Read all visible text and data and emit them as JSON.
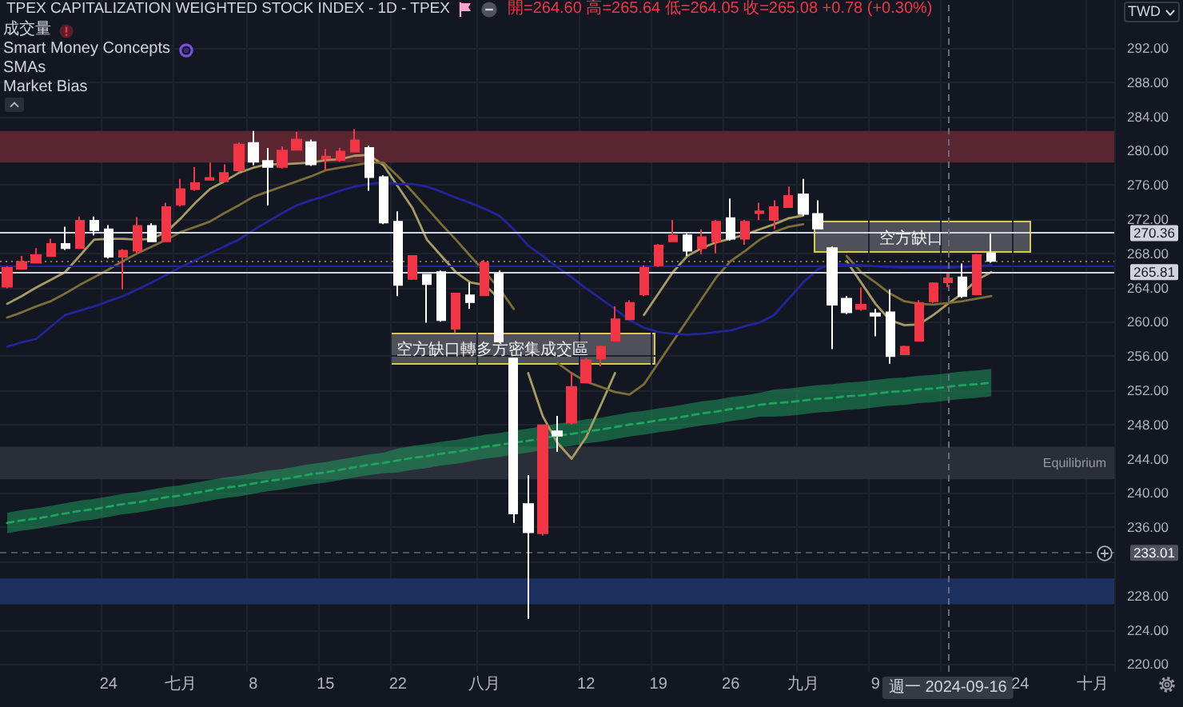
{
  "chart_data": {
    "type": "candlestick",
    "title": "TPEX CAPITALIZATION WEIGHTED STOCK INDEX - 1D - TPEX",
    "subtitle": "開=264.60 高=265.64 低=264.05 收=265.08 +0.78 (+0.30%)",
    "ylabel": "TWD",
    "categories": [
      null,
      null,
      null,
      null,
      null,
      null,
      null,
      "24",
      null,
      null,
      null,
      null,
      "七月",
      null,
      null,
      null,
      null,
      "8",
      null,
      null,
      null,
      null,
      "15",
      null,
      null,
      null,
      null,
      "22",
      null,
      null,
      null,
      null,
      null,
      "八月",
      null,
      null,
      null,
      null,
      null,
      null,
      "12",
      null,
      null,
      null,
      null,
      "19",
      null,
      null,
      null,
      null,
      "26",
      null,
      null,
      null,
      null,
      "九月",
      null,
      null,
      null,
      null,
      "9",
      null,
      null,
      null,
      null,
      "週一 2024-09-16",
      null,
      null,
      null,
      null,
      "24",
      null,
      null,
      null,
      null,
      "十月",
      null
    ],
    "ohlc": [
      [
        264.1,
        266.5,
        263.9,
        266.3
      ],
      [
        266.2,
        267.7,
        266.1,
        267.0
      ],
      [
        266.9,
        268.6,
        266.8,
        267.8
      ],
      [
        267.7,
        269.7,
        267.6,
        269.1
      ],
      [
        269.1,
        271.1,
        268.4,
        268.6
      ],
      [
        268.6,
        272.3,
        268.5,
        271.8
      ],
      [
        271.8,
        272.3,
        270.1,
        270.7
      ],
      [
        270.8,
        271.3,
        267.4,
        267.6
      ],
      [
        267.6,
        268.5,
        263.8,
        268.3
      ],
      [
        268.3,
        272.2,
        268.0,
        271.2
      ],
      [
        271.2,
        271.5,
        269.3,
        269.4
      ],
      [
        269.4,
        273.9,
        269.3,
        273.4
      ],
      [
        273.7,
        276.7,
        273.5,
        275.5
      ],
      [
        275.5,
        278.1,
        275.3,
        276.2
      ],
      [
        276.6,
        278.6,
        276.5,
        276.8
      ],
      [
        276.4,
        278.4,
        276.3,
        277.4
      ],
      [
        277.7,
        281.0,
        277.5,
        280.7
      ],
      [
        280.9,
        282.3,
        278.3,
        278.7
      ],
      [
        278.8,
        280.3,
        273.6,
        278.1
      ],
      [
        278.1,
        280.5,
        277.9,
        280.0
      ],
      [
        280.1,
        282.2,
        280.0,
        281.3
      ],
      [
        281.0,
        281.3,
        278.2,
        278.4
      ],
      [
        279.1,
        280.2,
        277.7,
        279.3
      ],
      [
        278.9,
        280.3,
        278.7,
        279.9
      ],
      [
        279.9,
        282.5,
        279.8,
        281.2
      ],
      [
        280.3,
        280.6,
        275.3,
        276.9
      ],
      [
        276.9,
        277.1,
        271.4,
        271.6
      ],
      [
        271.7,
        272.9,
        263.0,
        264.3
      ],
      [
        265.0,
        267.7,
        264.9,
        267.7
      ],
      [
        265.5,
        265.6,
        259.9,
        264.4
      ],
      [
        265.8,
        266.0,
        260.0,
        260.2
      ],
      [
        259.2,
        263.4,
        258.7,
        263.3
      ],
      [
        263.1,
        264.6,
        261.5,
        262.3
      ],
      [
        263.1,
        267.2,
        263.0,
        266.9
      ],
      [
        265.6,
        266.0,
        257.7,
        257.7
      ],
      [
        255.7,
        255.7,
        236.5,
        237.6
      ],
      [
        238.7,
        242.1,
        225.3,
        235.4
      ],
      [
        235.3,
        248.0,
        235.0,
        247.9
      ],
      [
        247.2,
        249.0,
        244.8,
        246.7
      ],
      [
        248.2,
        254.1,
        248.0,
        252.4
      ],
      [
        252.9,
        255.7,
        252.8,
        255.5
      ],
      [
        255.7,
        257.2,
        254.8,
        257.1
      ],
      [
        257.8,
        261.8,
        257.7,
        260.3
      ],
      [
        260.3,
        262.5,
        260.2,
        262.2
      ],
      [
        263.2,
        266.6,
        263.0,
        266.3
      ],
      [
        266.6,
        269.1,
        266.4,
        268.9
      ],
      [
        269.4,
        271.9,
        269.3,
        270.1
      ],
      [
        270.1,
        270.3,
        267.7,
        268.3
      ],
      [
        268.6,
        270.8,
        267.9,
        269.9
      ],
      [
        269.4,
        271.9,
        268.0,
        271.7
      ],
      [
        272.1,
        274.4,
        269.5,
        269.7
      ],
      [
        269.7,
        271.9,
        269.0,
        271.7
      ],
      [
        272.7,
        273.9,
        271.9,
        272.9
      ],
      [
        271.9,
        274.2,
        270.8,
        273.4
      ],
      [
        273.4,
        275.8,
        273.3,
        274.7
      ],
      [
        274.9,
        276.7,
        272.4,
        272.6
      ],
      [
        272.6,
        274.2,
        270.8,
        270.9
      ],
      [
        268.6,
        268.8,
        256.8,
        262.0
      ],
      [
        262.7,
        263.0,
        260.9,
        261.1
      ],
      [
        261.5,
        264.0,
        261.3,
        262.0
      ],
      [
        261.0,
        261.5,
        258.3,
        260.7
      ],
      [
        261.1,
        263.8,
        255.1,
        256.0
      ],
      [
        256.2,
        257.2,
        256.1,
        257.1
      ],
      [
        257.8,
        262.5,
        257.7,
        262.2
      ],
      [
        262.4,
        264.6,
        262.2,
        264.5
      ],
      [
        264.6,
        265.64,
        264.05,
        265.08
      ],
      [
        265.2,
        266.8,
        262.8,
        263.0
      ],
      [
        263.2,
        267.9,
        263.1,
        267.8
      ],
      [
        268.0,
        270.3,
        266.9,
        267.1
      ],
      null,
      null,
      null,
      null,
      null,
      null,
      null,
      null
    ],
    "colors": [
      "#f23645",
      "#f23645",
      "#f23645",
      "#f23645",
      "#ffffff",
      "#f23645",
      "#ffffff",
      "#ffffff",
      "#f23645",
      "#f23645",
      "#ffffff",
      "#f23645",
      "#f23645",
      "#f23645",
      "#f23645",
      "#f23645",
      "#f23645",
      "#ffffff",
      "#ffffff",
      "#f23645",
      "#f23645",
      "#ffffff",
      "#f23645",
      "#f23645",
      "#f23645",
      "#ffffff",
      "#ffffff",
      "#ffffff",
      "#f23645",
      "#ffffff",
      "#ffffff",
      "#f23645",
      "#ffffff",
      "#f23645",
      "#ffffff",
      "#ffffff",
      "#ffffff",
      "#f23645",
      "#ffffff",
      "#f23645",
      "#f23645",
      "#f23645",
      "#f23645",
      "#f23645",
      "#f23645",
      "#f23645",
      "#f23645",
      "#ffffff",
      "#f23645",
      "#f23645",
      "#ffffff",
      "#f23645",
      "#f23645",
      "#f23645",
      "#f23645",
      "#ffffff",
      "#ffffff",
      "#ffffff",
      "#ffffff",
      "#f23645",
      "#ffffff",
      "#ffffff",
      "#f23645",
      "#f23645",
      "#f23645",
      "#f23645",
      "#ffffff",
      "#f23645",
      "#ffffff",
      null,
      null,
      null,
      null,
      null,
      null,
      null,
      null
    ],
    "series": [
      {
        "type": "line",
        "color": "#a89c62",
        "values": [
          262.1,
          263.0,
          264.0,
          264.9,
          265.8,
          267.7,
          269.6,
          269.7,
          269.7,
          269.6,
          269.7,
          270.5,
          272.1,
          273.9,
          275.5,
          276.4,
          277.4,
          278.0,
          278.4,
          278.4,
          278.5,
          278.6,
          278.9,
          279.0,
          279.4,
          279.5,
          278.3,
          275.8,
          273.3,
          269.6,
          267.7,
          265.8,
          264.6,
          264.3,
          262.7,
          null,
          254.0,
          249.0,
          245.9,
          244.0,
          246.5,
          250.2,
          254.0,
          null,
          260.8,
          263.3,
          265.8,
          267.7,
          268.6,
          269.3,
          269.7,
          270.2,
          270.8,
          271.4,
          272.1,
          272.4,
          null,
          null,
          267.1,
          264.6,
          262.1,
          260.2,
          259.6,
          259.7,
          260.8,
          262.1,
          263.3,
          264.9,
          265.8,
          null,
          null,
          null,
          null,
          null,
          null,
          null,
          null
        ]
      },
      {
        "type": "line",
        "color": "#7d6d36",
        "values": [
          260.5,
          261.1,
          261.8,
          262.4,
          263.3,
          264.3,
          265.2,
          266.1,
          267.1,
          268.0,
          268.8,
          269.6,
          270.5,
          271.1,
          271.7,
          272.7,
          273.6,
          274.6,
          275.2,
          275.8,
          276.4,
          277.0,
          277.7,
          278.0,
          278.3,
          278.6,
          278.6,
          277.0,
          275.2,
          273.3,
          271.4,
          269.6,
          267.7,
          265.8,
          263.9,
          261.5,
          null,
          null,
          255.2,
          254.0,
          253.0,
          252.4,
          251.8,
          251.5,
          252.7,
          255.2,
          257.7,
          260.2,
          262.7,
          265.2,
          267.1,
          268.3,
          269.6,
          270.5,
          271.1,
          271.4,
          null,
          null,
          267.7,
          265.8,
          264.6,
          263.3,
          262.4,
          262.1,
          262.0,
          262.2,
          262.4,
          262.7,
          263.0,
          null,
          null,
          null,
          null,
          null,
          null,
          null,
          null
        ]
      },
      {
        "type": "line",
        "color": "#22249a",
        "values": [
          257.1,
          257.6,
          258.0,
          259.4,
          260.8,
          261.3,
          261.8,
          262.4,
          263.0,
          263.8,
          264.6,
          265.5,
          266.4,
          267.2,
          268.0,
          268.8,
          269.6,
          270.7,
          271.7,
          272.7,
          273.6,
          274.2,
          274.7,
          275.3,
          275.8,
          276.1,
          276.3,
          276.1,
          276.1,
          275.8,
          275.2,
          274.5,
          273.9,
          273.2,
          272.4,
          270.8,
          268.9,
          267.7,
          266.4,
          265.2,
          263.9,
          262.7,
          261.5,
          260.2,
          259.3,
          258.8,
          258.6,
          258.5,
          258.6,
          258.8,
          259.0,
          259.5,
          259.9,
          260.8,
          262.7,
          264.6,
          266.1,
          266.8,
          266.7,
          266.6,
          266.5,
          266.4,
          266.3,
          266.3,
          266.3,
          266.3,
          266.4,
          266.5,
          266.6,
          null,
          null,
          null,
          null,
          null,
          null,
          null,
          null
        ]
      },
      {
        "type": "line",
        "color": "#1ea35f",
        "line_style": "dashed",
        "values": [
          236.5,
          236.8,
          237.0,
          237.3,
          237.6,
          237.9,
          238.1,
          238.4,
          238.7,
          238.9,
          239.2,
          239.5,
          239.7,
          240.0,
          240.3,
          240.6,
          240.8,
          241.1,
          241.4,
          241.6,
          241.9,
          242.2,
          242.4,
          242.7,
          243.0,
          243.3,
          243.5,
          243.8,
          244.1,
          244.3,
          244.6,
          244.8,
          245.1,
          245.4,
          245.6,
          245.9,
          246.1,
          246.4,
          246.7,
          246.9,
          247.2,
          247.4,
          247.7,
          248.0,
          248.2,
          248.5,
          248.7,
          249.0,
          249.3,
          249.5,
          249.8,
          250.0,
          250.3,
          250.5,
          250.6,
          250.8,
          251.0,
          251.1,
          251.3,
          251.4,
          251.6,
          251.8,
          251.9,
          252.1,
          252.2,
          252.4,
          252.6,
          252.7,
          252.9,
          null,
          null,
          null,
          null,
          null,
          null,
          null,
          null
        ],
        "lower": [
          235.3,
          235.6,
          235.8,
          236.1,
          236.4,
          236.7,
          236.9,
          237.2,
          237.5,
          237.7,
          238.0,
          238.3,
          238.5,
          238.8,
          239.1,
          239.4,
          239.6,
          239.9,
          240.2,
          240.4,
          240.7,
          241.0,
          241.2,
          241.5,
          241.8,
          242.1,
          242.3,
          242.4,
          242.7,
          242.9,
          243.2,
          243.4,
          243.7,
          244.0,
          244.2,
          244.5,
          244.7,
          245.0,
          245.3,
          245.5,
          245.8,
          246.0,
          246.3,
          246.6,
          246.8,
          247.1,
          247.3,
          247.6,
          247.9,
          248.1,
          248.4,
          248.6,
          248.9,
          248.9,
          249.0,
          249.2,
          249.4,
          249.5,
          249.7,
          249.8,
          250.0,
          250.2,
          250.3,
          250.5,
          250.6,
          250.8,
          251.0,
          251.1,
          251.3,
          null,
          null,
          null,
          null,
          null,
          null,
          null,
          null
        ],
        "upper": [
          237.7,
          238.0,
          238.2,
          238.5,
          238.8,
          239.1,
          239.3,
          239.6,
          239.9,
          240.1,
          240.4,
          240.7,
          240.9,
          241.2,
          241.5,
          241.8,
          242.0,
          242.3,
          242.6,
          242.8,
          243.1,
          243.4,
          243.6,
          243.9,
          244.2,
          244.5,
          244.7,
          245.2,
          245.5,
          245.7,
          246.0,
          246.2,
          246.5,
          246.8,
          247.0,
          247.3,
          247.5,
          247.8,
          248.1,
          248.3,
          248.6,
          248.8,
          249.1,
          249.4,
          249.6,
          249.9,
          250.1,
          250.4,
          250.7,
          250.9,
          251.2,
          251.4,
          251.7,
          252.1,
          252.2,
          252.4,
          252.6,
          252.7,
          252.9,
          253.0,
          253.2,
          253.4,
          253.5,
          253.7,
          253.8,
          254.0,
          254.2,
          254.3,
          254.5,
          null,
          null,
          null,
          null,
          null,
          null,
          null,
          null
        ]
      }
    ],
    "ylim": [
      219.1,
      297.6
    ],
    "yticks": [
      {
        "value": 220,
        "label": "220.00"
      },
      {
        "value": 224,
        "label": "224.00"
      },
      {
        "value": 228,
        "label": "228.00"
      },
      {
        "value": 232,
        "label": null
      },
      {
        "value": 236,
        "label": "236.00"
      },
      {
        "value": 240,
        "label": "240.00"
      },
      {
        "value": 244,
        "label": "244.00"
      },
      {
        "value": 248,
        "label": "248.00"
      },
      {
        "value": 252,
        "label": "252.00"
      },
      {
        "value": 256,
        "label": "256.00"
      },
      {
        "value": 260,
        "label": "260.00"
      },
      {
        "value": 264,
        "label": "264.00"
      },
      {
        "value": 268,
        "label": "268.00"
      },
      {
        "value": 272,
        "label": "272.00"
      },
      {
        "value": 276,
        "label": "276.00"
      },
      {
        "value": 280,
        "label": "280.00"
      },
      {
        "value": 284,
        "label": "284.00"
      },
      {
        "value": 288,
        "label": "288.00"
      },
      {
        "value": 292,
        "label": "292.00"
      }
    ],
    "ref_lines": [
      {
        "axis": "y",
        "value": 270.36,
        "label": "270.36",
        "color": "#d1d4dc"
      },
      {
        "axis": "y",
        "value": 265.81,
        "label": "265.81",
        "color": "#d1d4dc"
      },
      {
        "axis": "y",
        "value": 233.01,
        "label": "233.01",
        "color": "#50535e",
        "line_style": "dashed"
      },
      {
        "axis": "y",
        "value": 266.6,
        "color": "#22249a"
      },
      {
        "axis": "y",
        "value": 267.1,
        "color": "#8c7a3c",
        "line_style": "dotted"
      },
      {
        "axis": "x",
        "value": "週一 2024-09-16",
        "color": "#6a6d78",
        "line_style": "dashed"
      }
    ],
    "bands": [
      {
        "axis": "y",
        "from": 278.6,
        "to": 282.3,
        "color": "#5a2632"
      },
      {
        "axis": "y",
        "from": 241.6,
        "to": 245.4,
        "label": "Equilibrium",
        "color": "#2a2e39"
      },
      {
        "axis": "y",
        "from": 227.0,
        "to": 230.0,
        "color": "#1c3160"
      }
    ],
    "annotations": [
      "成交量",
      "Smart Money Concepts",
      "SMAs",
      "Market Bias",
      "空方缺口轉多方密集成交區",
      {
        "text": "空方缺口",
        "y": 269.7
      }
    ],
    "grid": true
  }
}
